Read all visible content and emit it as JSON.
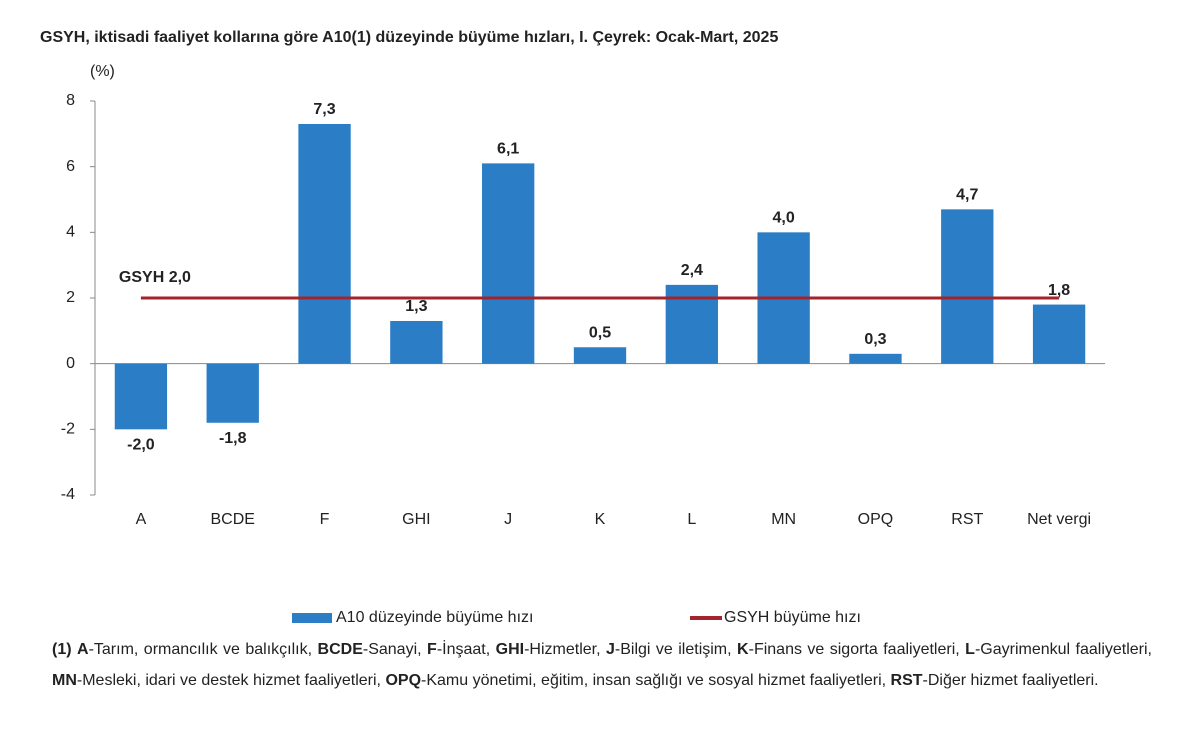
{
  "chart_data": {
    "type": "bar",
    "title": "GSYH, iktisadi faaliyet kollarına göre A10(1) düzeyinde büyüme hızları, I. Çeyrek: Ocak-Mart, 2025",
    "y_unit": "(%)",
    "categories": [
      "A",
      "BCDE",
      "F",
      "GHI",
      "J",
      "K",
      "L",
      "MN",
      "OPQ",
      "RST",
      "Net vergi"
    ],
    "series": [
      {
        "name": "A10 düzeyinde büyüme hızı",
        "type": "bar",
        "color": "#2b7ec5",
        "values": [
          -2.0,
          -1.8,
          7.3,
          1.3,
          6.1,
          0.5,
          2.4,
          4.0,
          0.3,
          4.7,
          1.8
        ],
        "value_labels": [
          "-2,0",
          "-1,8",
          "7,3",
          "1,3",
          "6,1",
          "0,5",
          "2,4",
          "4,0",
          "0,3",
          "4,7",
          "1,8"
        ]
      },
      {
        "name": "GSYH büyüme hızı",
        "type": "line",
        "color": "#a3242b",
        "values": [
          2.0,
          2.0,
          2.0,
          2.0,
          2.0,
          2.0,
          2.0,
          2.0,
          2.0,
          2.0,
          2.0
        ]
      }
    ],
    "annotation": "GSYH 2,0",
    "ylim": [
      -4,
      8
    ],
    "yticks": [
      -4,
      -2,
      0,
      2,
      4,
      6,
      8
    ],
    "grid": false,
    "legend": "bottom"
  },
  "footnote": {
    "prefix": "(1)",
    "items": [
      {
        "code": "A",
        "text": "-Tarım, ormancılık ve balıkçılık,"
      },
      {
        "code": "BCDE",
        "text": "-Sanayi,"
      },
      {
        "code": "F",
        "text": "-İnşaat,"
      },
      {
        "code": "GHI",
        "text": "-Hizmetler,"
      },
      {
        "code": "J",
        "text": "-Bilgi ve iletişim,"
      },
      {
        "code": "K",
        "text": "-Finans ve sigorta faaliyetleri,"
      },
      {
        "code": "L",
        "text": "-Gayrimenkul faaliyetleri,"
      },
      {
        "code": "MN",
        "text": "-Mesleki, idari ve destek hizmet faaliyetleri,"
      },
      {
        "code": "OPQ",
        "text": "-Kamu yönetimi, eğitim, insan sağlığı ve sosyal hizmet faaliyetleri,"
      },
      {
        "code": "RST",
        "text": "-Diğer hizmet faaliyetleri."
      }
    ]
  }
}
